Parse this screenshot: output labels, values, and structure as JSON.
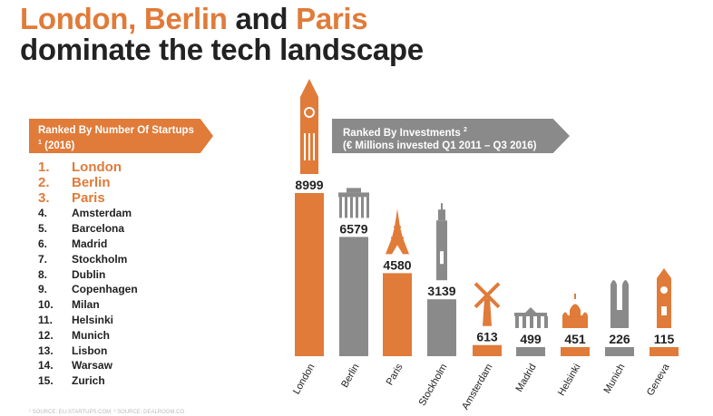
{
  "title": {
    "line1_part1": "London, Berlin",
    "line1_part2": " and ",
    "line1_part3": "Paris",
    "line2": "dominate the tech landscape"
  },
  "banner_left": {
    "text": "Ranked By Number Of Startups",
    "sup": "1",
    "year": "(2016)"
  },
  "banner_right": {
    "line1": "Ranked By Investments",
    "sup": "2",
    "line2": "(€ Millions invested Q1 2011 – Q3 2016)"
  },
  "ranking": [
    {
      "num": "1.",
      "city": "London"
    },
    {
      "num": "2.",
      "city": "Berlin"
    },
    {
      "num": "3.",
      "city": "Paris"
    },
    {
      "num": "4.",
      "city": "Amsterdam"
    },
    {
      "num": "5.",
      "city": "Barcelona"
    },
    {
      "num": "6.",
      "city": "Madrid"
    },
    {
      "num": "7.",
      "city": "Stockholm"
    },
    {
      "num": "8.",
      "city": "Dublin"
    },
    {
      "num": "9.",
      "city": "Copenhagen"
    },
    {
      "num": "10.",
      "city": "Milan"
    },
    {
      "num": "11.",
      "city": "Helsinki"
    },
    {
      "num": "12.",
      "city": "Munich"
    },
    {
      "num": "13.",
      "city": "Lisbon"
    },
    {
      "num": "14.",
      "city": "Warsaw"
    },
    {
      "num": "15.",
      "city": "Zurich"
    }
  ],
  "colors": {
    "orange": "#e07b39",
    "gray": "#8a8a8a",
    "text": "#222222"
  },
  "chart_data": {
    "type": "bar",
    "categories": [
      "London",
      "Berlin",
      "Paris",
      "Stockholm",
      "Amsterdam",
      "Madrid",
      "Helsinki",
      "Munich",
      "Geneva"
    ],
    "values": [
      8999,
      6579,
      4580,
      3139,
      613,
      499,
      451,
      226,
      115
    ],
    "bar_colors": [
      "#e07b39",
      "#8a8a8a",
      "#e07b39",
      "#8a8a8a",
      "#e07b39",
      "#8a8a8a",
      "#e07b39",
      "#8a8a8a",
      "#e07b39"
    ],
    "icons": [
      "big-ben-icon",
      "brandenburg-gate-icon",
      "eiffel-tower-icon",
      "stockholm-tower-icon",
      "windmill-icon",
      "alcala-gate-icon",
      "helsinki-cathedral-icon",
      "frauenkirche-icon",
      "geneva-clock-tower-icon"
    ],
    "title": "",
    "xlabel": "",
    "ylabel": ""
  },
  "footnote": "¹ SOURCE: EU-STARTUPS.COM; ² SOURCE: DEALROOM.CO"
}
